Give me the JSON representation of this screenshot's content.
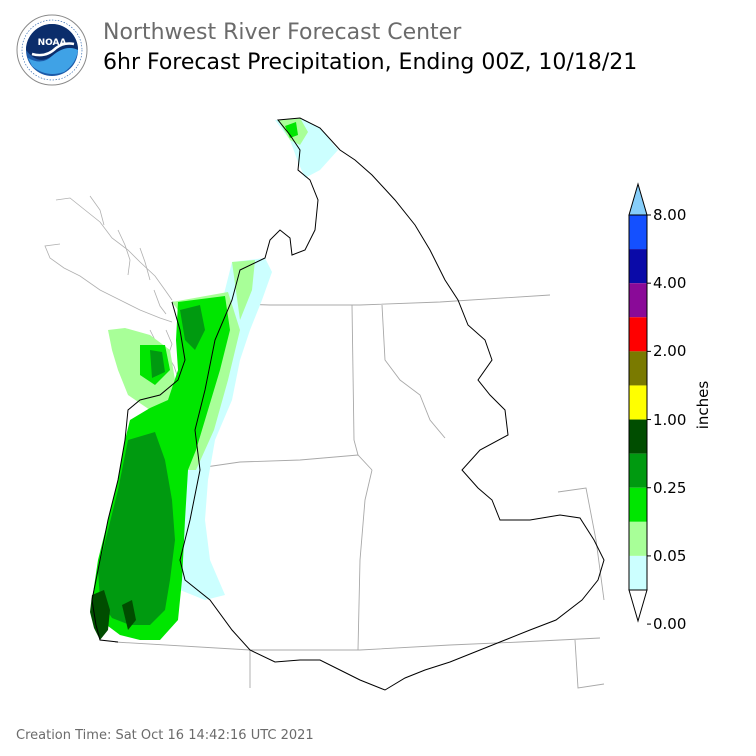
{
  "header": {
    "title": "Northwest River Forecast Center",
    "subtitle": "6hr Forecast Precipitation, Ending 00Z, 10/18/21"
  },
  "logo": {
    "name": "noaa-logo",
    "text": "NOAA"
  },
  "legend": {
    "units": "inches",
    "tick_labels": [
      "8.00",
      "4.00",
      "2.00",
      "1.00",
      "0.25",
      "0.05",
      "0.00"
    ],
    "colors": [
      "#87cefa",
      "#1450ff",
      "#0a0aa8",
      "#8a0a98",
      "#ff0000",
      "#7a7a00",
      "#ffff00",
      "#004d00",
      "#009a10",
      "#00e600",
      "#a8ff98",
      "#ccffff",
      "#ffffff"
    ]
  },
  "map": {
    "region": "Pacific Northwest",
    "colors": {
      "trace": "#ccffff",
      "light": "#a8ff98",
      "medium": "#00e600",
      "heavy": "#009a10",
      "very_heavy": "#004d00"
    }
  },
  "footer": {
    "creation_time": "Creation Time: Sat Oct 16 14:42:16 UTC 2021"
  }
}
